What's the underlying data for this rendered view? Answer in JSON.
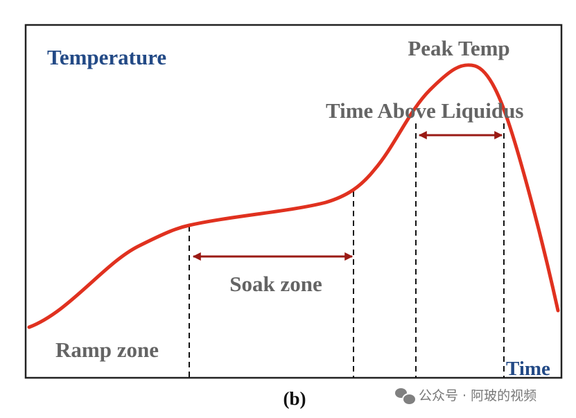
{
  "diagram": {
    "y_axis_label": "Temperature",
    "x_axis_label": "Time",
    "labels": {
      "peak": "Peak Temp",
      "tal": "Time Above Liquidus",
      "soak": "Soak zone",
      "ramp": "Ramp zone"
    },
    "caption": "(b)",
    "colors": {
      "curve": "#e0311f",
      "arrow": "#9a1a14",
      "axis_label": "#234a86",
      "text": "#646464"
    }
  },
  "watermark": {
    "text": "公众号 · 阿玻的视频",
    "icon": "wechat-icon"
  }
}
